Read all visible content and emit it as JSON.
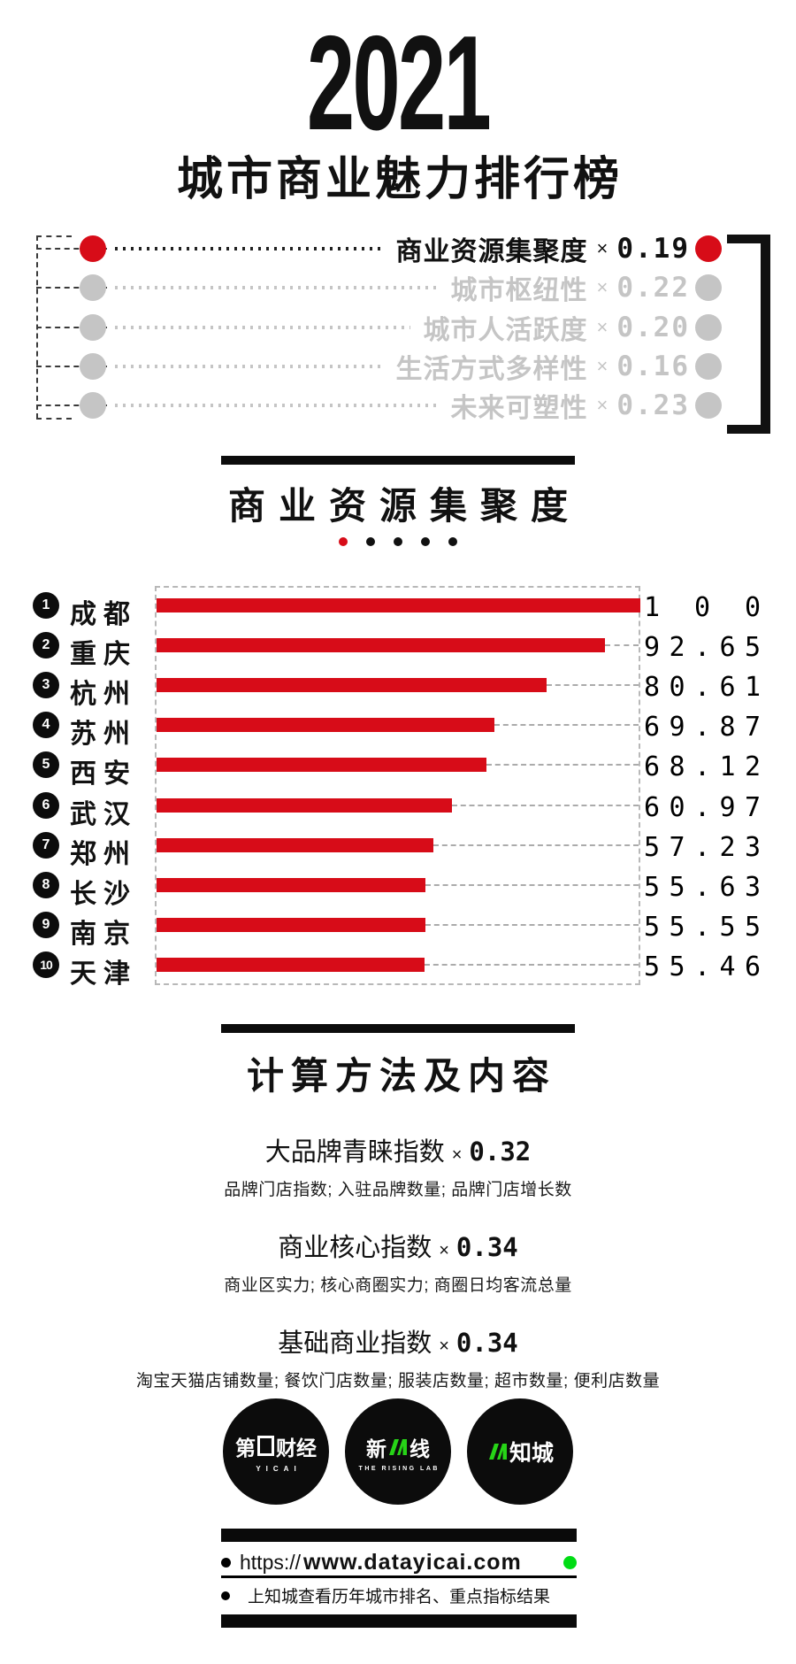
{
  "title": {
    "year": "2021",
    "subtitle": "城市商业魅力排行榜"
  },
  "legend": {
    "multiply_symbol": "×",
    "items": [
      {
        "label": "商业资源集聚度",
        "weight": "0.19",
        "active": true
      },
      {
        "label": "城市枢纽性",
        "weight": "0.22",
        "active": false
      },
      {
        "label": "城市人活跃度",
        "weight": "0.20",
        "active": false
      },
      {
        "label": "生活方式多样性",
        "weight": "0.16",
        "active": false
      },
      {
        "label": "未来可塑性",
        "weight": "0.23",
        "active": false
      }
    ]
  },
  "section": {
    "title": "商业资源集聚度",
    "page_dots_total": 5,
    "active_dot_index": 0
  },
  "chart_data": {
    "type": "bar",
    "title": "商业资源集聚度",
    "categories": [
      "成都",
      "重庆",
      "杭州",
      "苏州",
      "西安",
      "武汉",
      "郑州",
      "长沙",
      "南京",
      "天津"
    ],
    "ranks": [
      "1",
      "2",
      "3",
      "4",
      "5",
      "6",
      "7",
      "8",
      "9",
      "10"
    ],
    "values": [
      100,
      92.65,
      80.61,
      69.87,
      68.12,
      60.97,
      57.23,
      55.63,
      55.55,
      55.46
    ],
    "value_labels": [
      "100",
      "92.65",
      "80.61",
      "69.87",
      "68.12",
      "60.97",
      "57.23",
      "55.63",
      "55.55",
      "55.46"
    ],
    "xlim": [
      0,
      100
    ],
    "grid": false,
    "orientation": "horizontal"
  },
  "methods": {
    "section_title": "计算方法及内容",
    "multiply_symbol": "×",
    "items": [
      {
        "name": "大品牌青睐指数",
        "weight": "0.32",
        "detail": "品牌门店指数; 入驻品牌数量; 品牌门店增长数"
      },
      {
        "name": "商业核心指数",
        "weight": "0.34",
        "detail": "商业区实力; 核心商圈实力; 商圈日均客流总量"
      },
      {
        "name": "基础商业指数",
        "weight": "0.34",
        "detail": "淘宝天猫店铺数量; 餐饮门店数量; 服装店数量; 超市数量; 便利店数量"
      }
    ]
  },
  "logos": [
    {
      "id": "yicai",
      "text_before": "第",
      "text_after": "财经",
      "caption": "YICAI",
      "box_glyph": true,
      "n_mark": false
    },
    {
      "id": "rising-lab",
      "text_before": "新",
      "text_after": "线",
      "caption": "THE RISING LAB",
      "box_glyph": false,
      "n_mark": true
    },
    {
      "id": "zhicheng",
      "text_before": "",
      "text_after": "知城",
      "caption": "",
      "box_glyph": false,
      "n_mark": true
    }
  ],
  "footer": {
    "url_prefix": "https://",
    "url_main": "www.datayicai.com",
    "note": "上知城查看历年城市排名、重点指标结果"
  },
  "colors": {
    "accent_red": "#d70c18",
    "inactive_gray": "#c5c5c5",
    "leader_dark": "#222222",
    "logo_green": "#27d417",
    "footer_green": "#00dc14",
    "black": "#111111"
  }
}
